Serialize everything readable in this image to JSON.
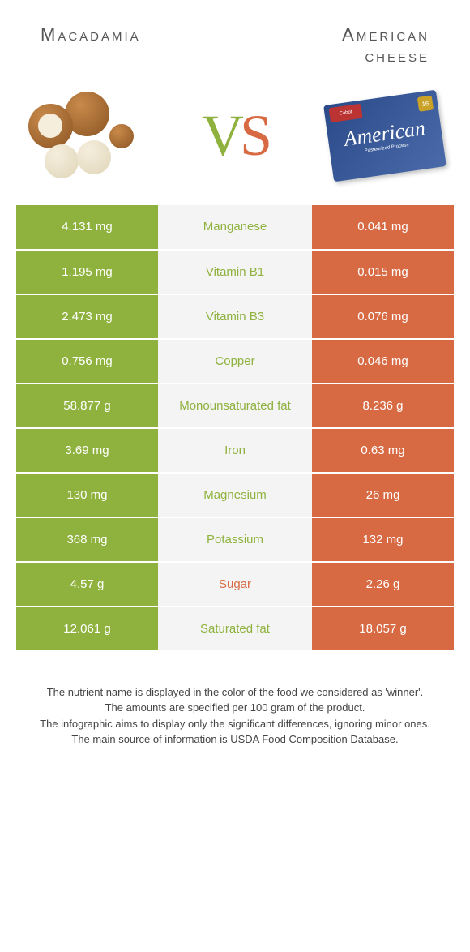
{
  "colors": {
    "green": "#8fb23e",
    "orange": "#d86a43",
    "mid_bg": "#f4f4f4",
    "text": "#333333"
  },
  "header": {
    "left_title": "Macadamia",
    "right_title_line1": "American",
    "right_title_line2": "cheese",
    "cheese_brand": "Cabot",
    "cheese_label": "American",
    "cheese_badge": "16"
  },
  "vs": {
    "v": "V",
    "s": "S"
  },
  "rows": [
    {
      "left": "4.131 mg",
      "name": "Manganese",
      "name_color": "#8fb23e",
      "right": "0.041 mg"
    },
    {
      "left": "1.195 mg",
      "name": "Vitamin B1",
      "name_color": "#8fb23e",
      "right": "0.015 mg"
    },
    {
      "left": "2.473 mg",
      "name": "Vitamin B3",
      "name_color": "#8fb23e",
      "right": "0.076 mg"
    },
    {
      "left": "0.756 mg",
      "name": "Copper",
      "name_color": "#8fb23e",
      "right": "0.046 mg"
    },
    {
      "left": "58.877 g",
      "name": "Monounsaturated fat",
      "name_color": "#8fb23e",
      "right": "8.236 g"
    },
    {
      "left": "3.69 mg",
      "name": "Iron",
      "name_color": "#8fb23e",
      "right": "0.63 mg"
    },
    {
      "left": "130 mg",
      "name": "Magnesium",
      "name_color": "#8fb23e",
      "right": "26 mg"
    },
    {
      "left": "368 mg",
      "name": "Potassium",
      "name_color": "#8fb23e",
      "right": "132 mg"
    },
    {
      "left": "4.57 g",
      "name": "Sugar",
      "name_color": "#d86a43",
      "right": "2.26 g"
    },
    {
      "left": "12.061 g",
      "name": "Saturated fat",
      "name_color": "#8fb23e",
      "right": "18.057 g"
    }
  ],
  "left_bg": "#8fb23e",
  "right_bg": "#d86a43",
  "footer": {
    "l1": "The nutrient name is displayed in the color of the food we considered as 'winner'.",
    "l2": "The amounts are specified per 100 gram of the product.",
    "l3": "The infographic aims to display only the significant differences, ignoring minor ones.",
    "l4": "The main source of information is USDA Food Composition Database."
  }
}
